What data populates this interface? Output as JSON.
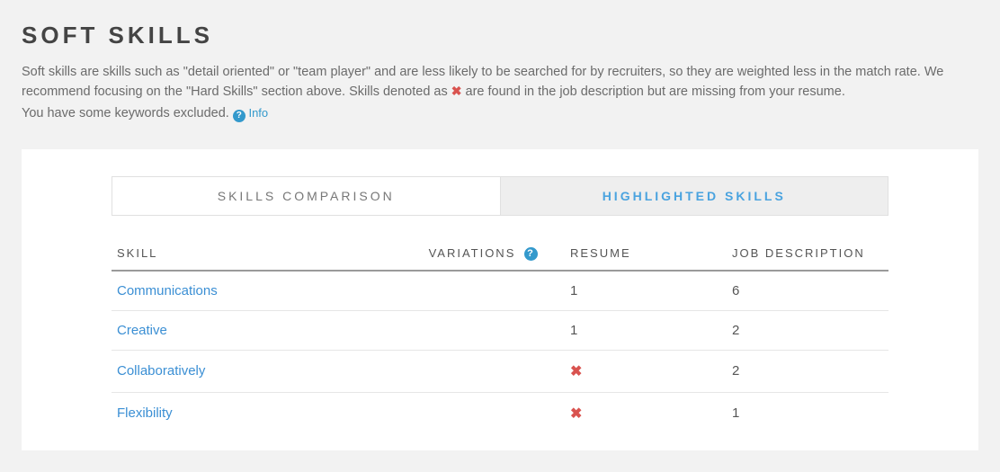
{
  "title": "SOFT SKILLS",
  "intro": {
    "line1a": "Soft skills are skills such as \"detail oriented\" or \"team player\" and are less likely to be searched for by recruiters, so they are weighted less in the match rate. We recommend focusing on the \"Hard Skills\" section above. Skills denoted as ",
    "line1b": " are found in the job description but are missing from your resume.",
    "excluded": "You have some keywords excluded.",
    "info_label": "Info"
  },
  "tabs": {
    "active": "SKILLS COMPARISON",
    "inactive": "HIGHLIGHTED SKILLS"
  },
  "table": {
    "headers": {
      "skill": "SKILL",
      "variations": "VARIATIONS",
      "resume": "RESUME",
      "jd": "JOB DESCRIPTION"
    },
    "rows": [
      {
        "skill": "Communications",
        "resume": "1",
        "jd": "6",
        "missing": false
      },
      {
        "skill": "Creative",
        "resume": "1",
        "jd": "2",
        "missing": false
      },
      {
        "skill": "Collaboratively",
        "resume": "",
        "jd": "2",
        "missing": true
      },
      {
        "skill": "Flexibility",
        "resume": "",
        "jd": "1",
        "missing": true
      }
    ]
  },
  "colors": {
    "link": "#3b8fd4",
    "missing": "#d9534f",
    "text": "#5a5a5a",
    "bg": "#f2f2f2",
    "panel": "#ffffff",
    "tab_inactive_bg": "#eeeeee"
  }
}
